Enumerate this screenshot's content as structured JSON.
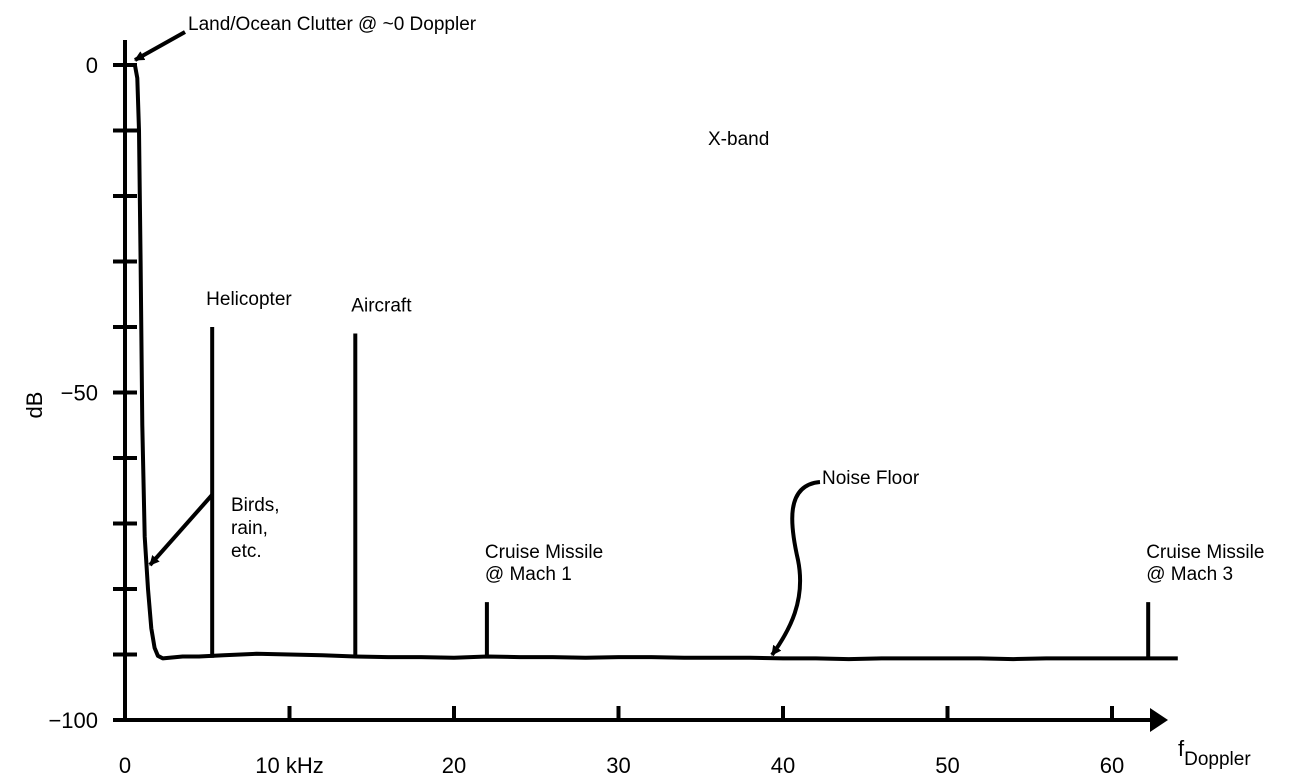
{
  "colors": {
    "ink": "#000000",
    "background": "#ffffff"
  },
  "chart_data": {
    "type": "line",
    "title": "X-band",
    "ylabel": "dB",
    "xlabel_main": "f",
    "xlabel_sub": "Doppler",
    "xlim": [
      0,
      64
    ],
    "ylim": [
      -100,
      0
    ],
    "x_ticks": [
      {
        "value": 0,
        "label": "0"
      },
      {
        "value": 10,
        "label": "10 kHz"
      },
      {
        "value": 20,
        "label": "20"
      },
      {
        "value": 30,
        "label": "30"
      },
      {
        "value": 40,
        "label": "40"
      },
      {
        "value": 50,
        "label": "50"
      },
      {
        "value": 60,
        "label": "60"
      }
    ],
    "y_ticks": [
      {
        "value": 0,
        "label": "0"
      },
      {
        "value": -10,
        "label": ""
      },
      {
        "value": -20,
        "label": ""
      },
      {
        "value": -30,
        "label": ""
      },
      {
        "value": -40,
        "label": ""
      },
      {
        "value": -50,
        "label": "−50"
      },
      {
        "value": -60,
        "label": ""
      },
      {
        "value": -70,
        "label": ""
      },
      {
        "value": -80,
        "label": ""
      },
      {
        "value": -90,
        "label": ""
      },
      {
        "value": -100,
        "label": "−100"
      }
    ],
    "clutter_curve": {
      "x": [
        0,
        0.6,
        0.75,
        0.85,
        0.95,
        1.05,
        1.2,
        1.4,
        1.6,
        1.8,
        2.0,
        2.3,
        2.7,
        3.5,
        4.5,
        6,
        8,
        10,
        12,
        14,
        16,
        18,
        20,
        22,
        24,
        26,
        28,
        30,
        32,
        34,
        36,
        38,
        40,
        42,
        44,
        46,
        48,
        50,
        52,
        54,
        56,
        58,
        60,
        62,
        64
      ],
      "y": [
        0,
        0,
        -2,
        -10,
        -30,
        -55,
        -72,
        -80,
        -86,
        -89,
        -90.2,
        -90.6,
        -90.5,
        -90.3,
        -90.3,
        -90.1,
        -89.9,
        -90.0,
        -90.1,
        -90.3,
        -90.4,
        -90.4,
        -90.5,
        -90.3,
        -90.4,
        -90.4,
        -90.5,
        -90.4,
        -90.4,
        -90.5,
        -90.5,
        -90.5,
        -90.6,
        -90.6,
        -90.7,
        -90.6,
        -90.6,
        -90.6,
        -90.6,
        -90.7,
        -90.6,
        -90.6,
        -90.6,
        -90.6,
        -90.6
      ]
    },
    "target_lines": [
      {
        "x": 5.3,
        "y": -40,
        "label_lines": [
          "Helicopter"
        ],
        "anchor": "start"
      },
      {
        "x": 14,
        "y": -41,
        "label_lines": [
          "Aircraft"
        ],
        "anchor": "start"
      },
      {
        "x": 22,
        "y": -82,
        "label_lines": [
          "Cruise Missile",
          "@ Mach 1"
        ],
        "anchor": "start"
      },
      {
        "x": 62.2,
        "y": -82,
        "label_lines": [
          "Cruise Missile",
          "@ Mach 3"
        ],
        "anchor": "start"
      }
    ],
    "annotations": [
      {
        "id": "land-ocean-clutter",
        "text_lines": [
          "Land/Ocean Clutter @ ~0 Doppler"
        ],
        "points_to": {
          "x": 0.3,
          "y": 0
        }
      },
      {
        "id": "birds-rain",
        "text_lines": [
          "Birds,",
          "rain,",
          "etc."
        ],
        "points_to": {
          "x": 1.4,
          "y": -77
        }
      },
      {
        "id": "noise-floor",
        "text_lines": [
          "Noise Floor"
        ],
        "points_to": {
          "x": 39.5,
          "y": -90.5
        }
      }
    ]
  }
}
